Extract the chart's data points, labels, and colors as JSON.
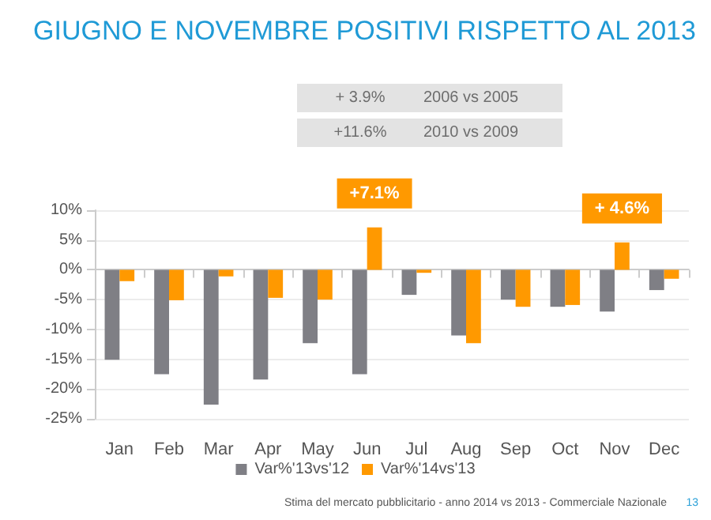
{
  "chart_data": {
    "type": "bar",
    "title": "GIUGNO E NOVEMBRE POSITIVI RISPETTO AL 2013",
    "categories": [
      "Jan",
      "Feb",
      "Mar",
      "Apr",
      "May",
      "Jun",
      "Jul",
      "Aug",
      "Sep",
      "Oct",
      "Nov",
      "Dec"
    ],
    "series": [
      {
        "name": "Var%'13vs'12",
        "color": "#7f7f85",
        "values": [
          -15.1,
          -17.5,
          -22.6,
          -18.4,
          -12.3,
          -17.5,
          -4.2,
          -11.0,
          -5.0,
          -6.2,
          -7.0,
          -3.4
        ]
      },
      {
        "name": "Var%'14vs'13",
        "color": "#ff9900",
        "values": [
          -1.9,
          -5.1,
          -1.1,
          -4.7,
          -5.0,
          7.1,
          -0.5,
          -12.3,
          -6.2,
          -5.9,
          4.6,
          -1.5
        ],
        "value_labels": [
          null,
          null,
          null,
          null,
          null,
          "+7.1%",
          null,
          null,
          null,
          null,
          "+ 4.6%",
          null
        ]
      }
    ],
    "ylim": [
      -25,
      10
    ],
    "yticks": [
      {
        "value": -25,
        "label": "-25%"
      },
      {
        "value": -20,
        "label": "-20%"
      },
      {
        "value": -15,
        "label": "-15%"
      },
      {
        "value": -10,
        "label": "-10%"
      },
      {
        "value": -5,
        "label": "-5%"
      },
      {
        "value": 0,
        "label": "0%"
      },
      {
        "value": 5,
        "label": "5%"
      },
      {
        "value": 10,
        "label": "10%"
      }
    ],
    "grid": "y",
    "legend": "bottom",
    "annotations": [
      "+ 3.9%",
      "2006 vs 2005",
      "+11.6%",
      "2010 vs 2009",
      "Stima del mercato pubblicitario - anno 2014 vs 2013 - Commerciale Nazionale",
      "13"
    ]
  }
}
